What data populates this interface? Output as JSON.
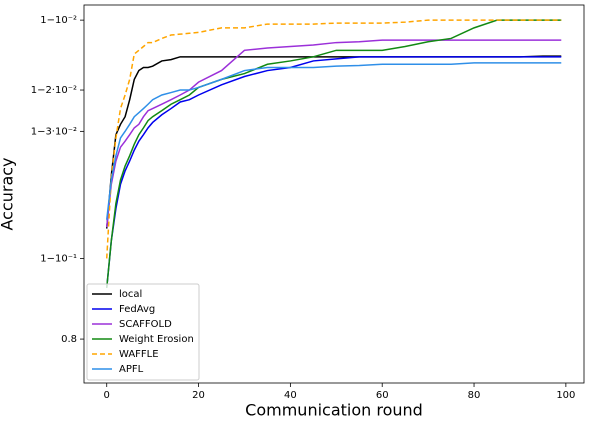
{
  "chart_data": {
    "type": "line",
    "xlabel": "Communication round",
    "ylabel": "Accuracy",
    "yscale": "logit",
    "legend": "lower left",
    "grid": false,
    "xlim": [
      -4.95,
      103.95
    ],
    "ylim": [
      0.72,
      0.9914
    ],
    "xticks": [
      0,
      20,
      40,
      60,
      80,
      100
    ],
    "yticks": [
      {
        "value": 0.99,
        "label": "1−10⁻²"
      },
      {
        "value": 0.98,
        "label": "1−2·10⁻²"
      },
      {
        "value": 0.97,
        "label": "1−3·10⁻²"
      },
      {
        "value": 0.9,
        "label": "1−10⁻¹"
      },
      0.8
    ],
    "x": [
      0,
      1,
      2,
      3,
      4,
      5,
      6,
      7,
      8,
      9,
      10,
      12,
      14,
      16,
      18,
      20,
      25,
      30,
      35,
      40,
      45,
      50,
      55,
      60,
      65,
      70,
      75,
      80,
      85,
      90,
      95,
      99
    ],
    "series": [
      {
        "name": "local",
        "color": "#000000",
        "linestyle": "solid",
        "values": [
          0.924,
          0.954,
          0.969,
          0.972,
          0.974,
          0.978,
          0.982,
          0.9835,
          0.984,
          0.984,
          0.9842,
          0.985,
          0.9852,
          0.9856,
          0.9856,
          0.9856,
          0.9856,
          0.9856,
          0.9856,
          0.9856,
          0.9856,
          0.9856,
          0.9856,
          0.9856,
          0.9856,
          0.9856,
          0.9856,
          0.9856,
          0.9856,
          0.9856,
          0.9857,
          0.9857
        ]
      },
      {
        "name": "FedAvg",
        "color": "#0000ee",
        "linestyle": "solid",
        "values": [
          0.87,
          0.915,
          0.937,
          0.95,
          0.956,
          0.96,
          0.964,
          0.967,
          0.969,
          0.971,
          0.9725,
          0.9745,
          0.976,
          0.9775,
          0.978,
          0.979,
          0.981,
          0.9825,
          0.9835,
          0.984,
          0.985,
          0.9853,
          0.9856,
          0.9856,
          0.9856,
          0.9856,
          0.9856,
          0.9856,
          0.9856,
          0.9856,
          0.9856,
          0.9856
        ]
      },
      {
        "name": "SCAFFOLD",
        "color": "#9b30d9",
        "linestyle": "solid",
        "values": [
          0.925,
          0.95,
          0.96,
          0.965,
          0.967,
          0.969,
          0.971,
          0.972,
          0.974,
          0.9755,
          0.976,
          0.977,
          0.978,
          0.979,
          0.98,
          0.9815,
          0.9835,
          0.9865,
          0.9868,
          0.987,
          0.9872,
          0.9875,
          0.9876,
          0.9878,
          0.9878,
          0.9878,
          0.9878,
          0.9878,
          0.9878,
          0.9878,
          0.9878,
          0.9878
        ]
      },
      {
        "name": "Weight Erosion",
        "color": "#128a12",
        "linestyle": "solid",
        "values": [
          0.87,
          0.915,
          0.94,
          0.952,
          0.958,
          0.962,
          0.966,
          0.969,
          0.971,
          0.973,
          0.974,
          0.9755,
          0.977,
          0.978,
          0.979,
          0.9805,
          0.982,
          0.983,
          0.9845,
          0.985,
          0.9856,
          0.9865,
          0.9865,
          0.9865,
          0.987,
          0.9876,
          0.988,
          0.9892,
          0.99,
          0.99,
          0.99,
          0.99
        ]
      },
      {
        "name": "WAFFLE",
        "color": "#ffa500",
        "linestyle": "dashed",
        "values": [
          0.9,
          0.953,
          0.968,
          0.976,
          0.979,
          0.982,
          0.986,
          0.9865,
          0.987,
          0.9875,
          0.9875,
          0.988,
          0.9884,
          0.9885,
          0.9886,
          0.9887,
          0.9892,
          0.9892,
          0.9896,
          0.9896,
          0.9896,
          0.9897,
          0.9897,
          0.9897,
          0.9898,
          0.99,
          0.99,
          0.99,
          0.99,
          0.99,
          0.99,
          0.99
        ]
      },
      {
        "name": "APFL",
        "color": "#2f8fe8",
        "linestyle": "solid",
        "values": [
          0.93,
          0.952,
          0.962,
          0.968,
          0.97,
          0.972,
          0.974,
          0.975,
          0.976,
          0.977,
          0.978,
          0.979,
          0.9795,
          0.98,
          0.98,
          0.9805,
          0.982,
          0.9835,
          0.984,
          0.984,
          0.984,
          0.9842,
          0.9843,
          0.9845,
          0.9845,
          0.9845,
          0.9845,
          0.9847,
          0.9847,
          0.9847,
          0.9847,
          0.9847
        ]
      }
    ]
  }
}
